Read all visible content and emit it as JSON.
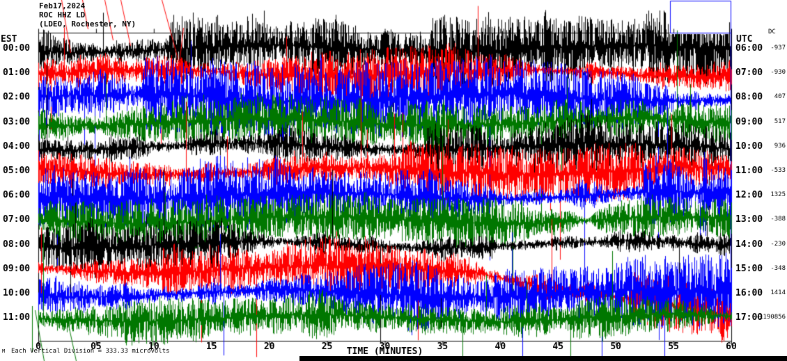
{
  "title_block": {
    "date": "Feb17,2024",
    "station": "ROC HHZ LD",
    "affiliation": "(LDEO, Rochester, NY)"
  },
  "chart_data": {
    "type": "line",
    "variant": "helicorder-seismogram",
    "xlabel": "TIME (MINUTES)",
    "x_range_minutes": [
      0,
      60
    ],
    "x_ticks": [
      "0",
      "05",
      "10",
      "15",
      "20",
      "25",
      "30",
      "35",
      "40",
      "45",
      "50",
      "55",
      "60"
    ],
    "left_time_header": "EST",
    "right_time_header": "UTC",
    "dc_header": "DC",
    "scale_note": "Each Vertical Division = 333.33 microvolts",
    "vertical_division_microvolts": 333.33,
    "colors": {
      "black": "#000000",
      "red": "#ff0000",
      "blue": "#0000ff",
      "green": "#007700"
    },
    "rows": [
      {
        "est": "00:00",
        "utc": "06:00",
        "dc": "-937",
        "color": "black"
      },
      {
        "est": "01:00",
        "utc": "07:00",
        "dc": "-930",
        "color": "red"
      },
      {
        "est": "02:00",
        "utc": "08:00",
        "dc": "407",
        "color": "blue"
      },
      {
        "est": "03:00",
        "utc": "09:00",
        "dc": "517",
        "color": "green"
      },
      {
        "est": "04:00",
        "utc": "10:00",
        "dc": "936",
        "color": "black"
      },
      {
        "est": "05:00",
        "utc": "11:00",
        "dc": "-533",
        "color": "red"
      },
      {
        "est": "06:00",
        "utc": "12:00",
        "dc": "1325",
        "color": "blue"
      },
      {
        "est": "07:00",
        "utc": "13:00",
        "dc": "-388",
        "color": "green"
      },
      {
        "est": "08:00",
        "utc": "14:00",
        "dc": "-230",
        "color": "black"
      },
      {
        "est": "09:00",
        "utc": "15:00",
        "dc": "-348",
        "color": "red"
      },
      {
        "est": "10:00",
        "utc": "16:00",
        "dc": "1414",
        "color": "blue"
      },
      {
        "est": "11:00",
        "utc": "17:00",
        "dc": "-1190856",
        "color": "green"
      }
    ]
  },
  "footer": {
    "logo_glyph": "M"
  }
}
